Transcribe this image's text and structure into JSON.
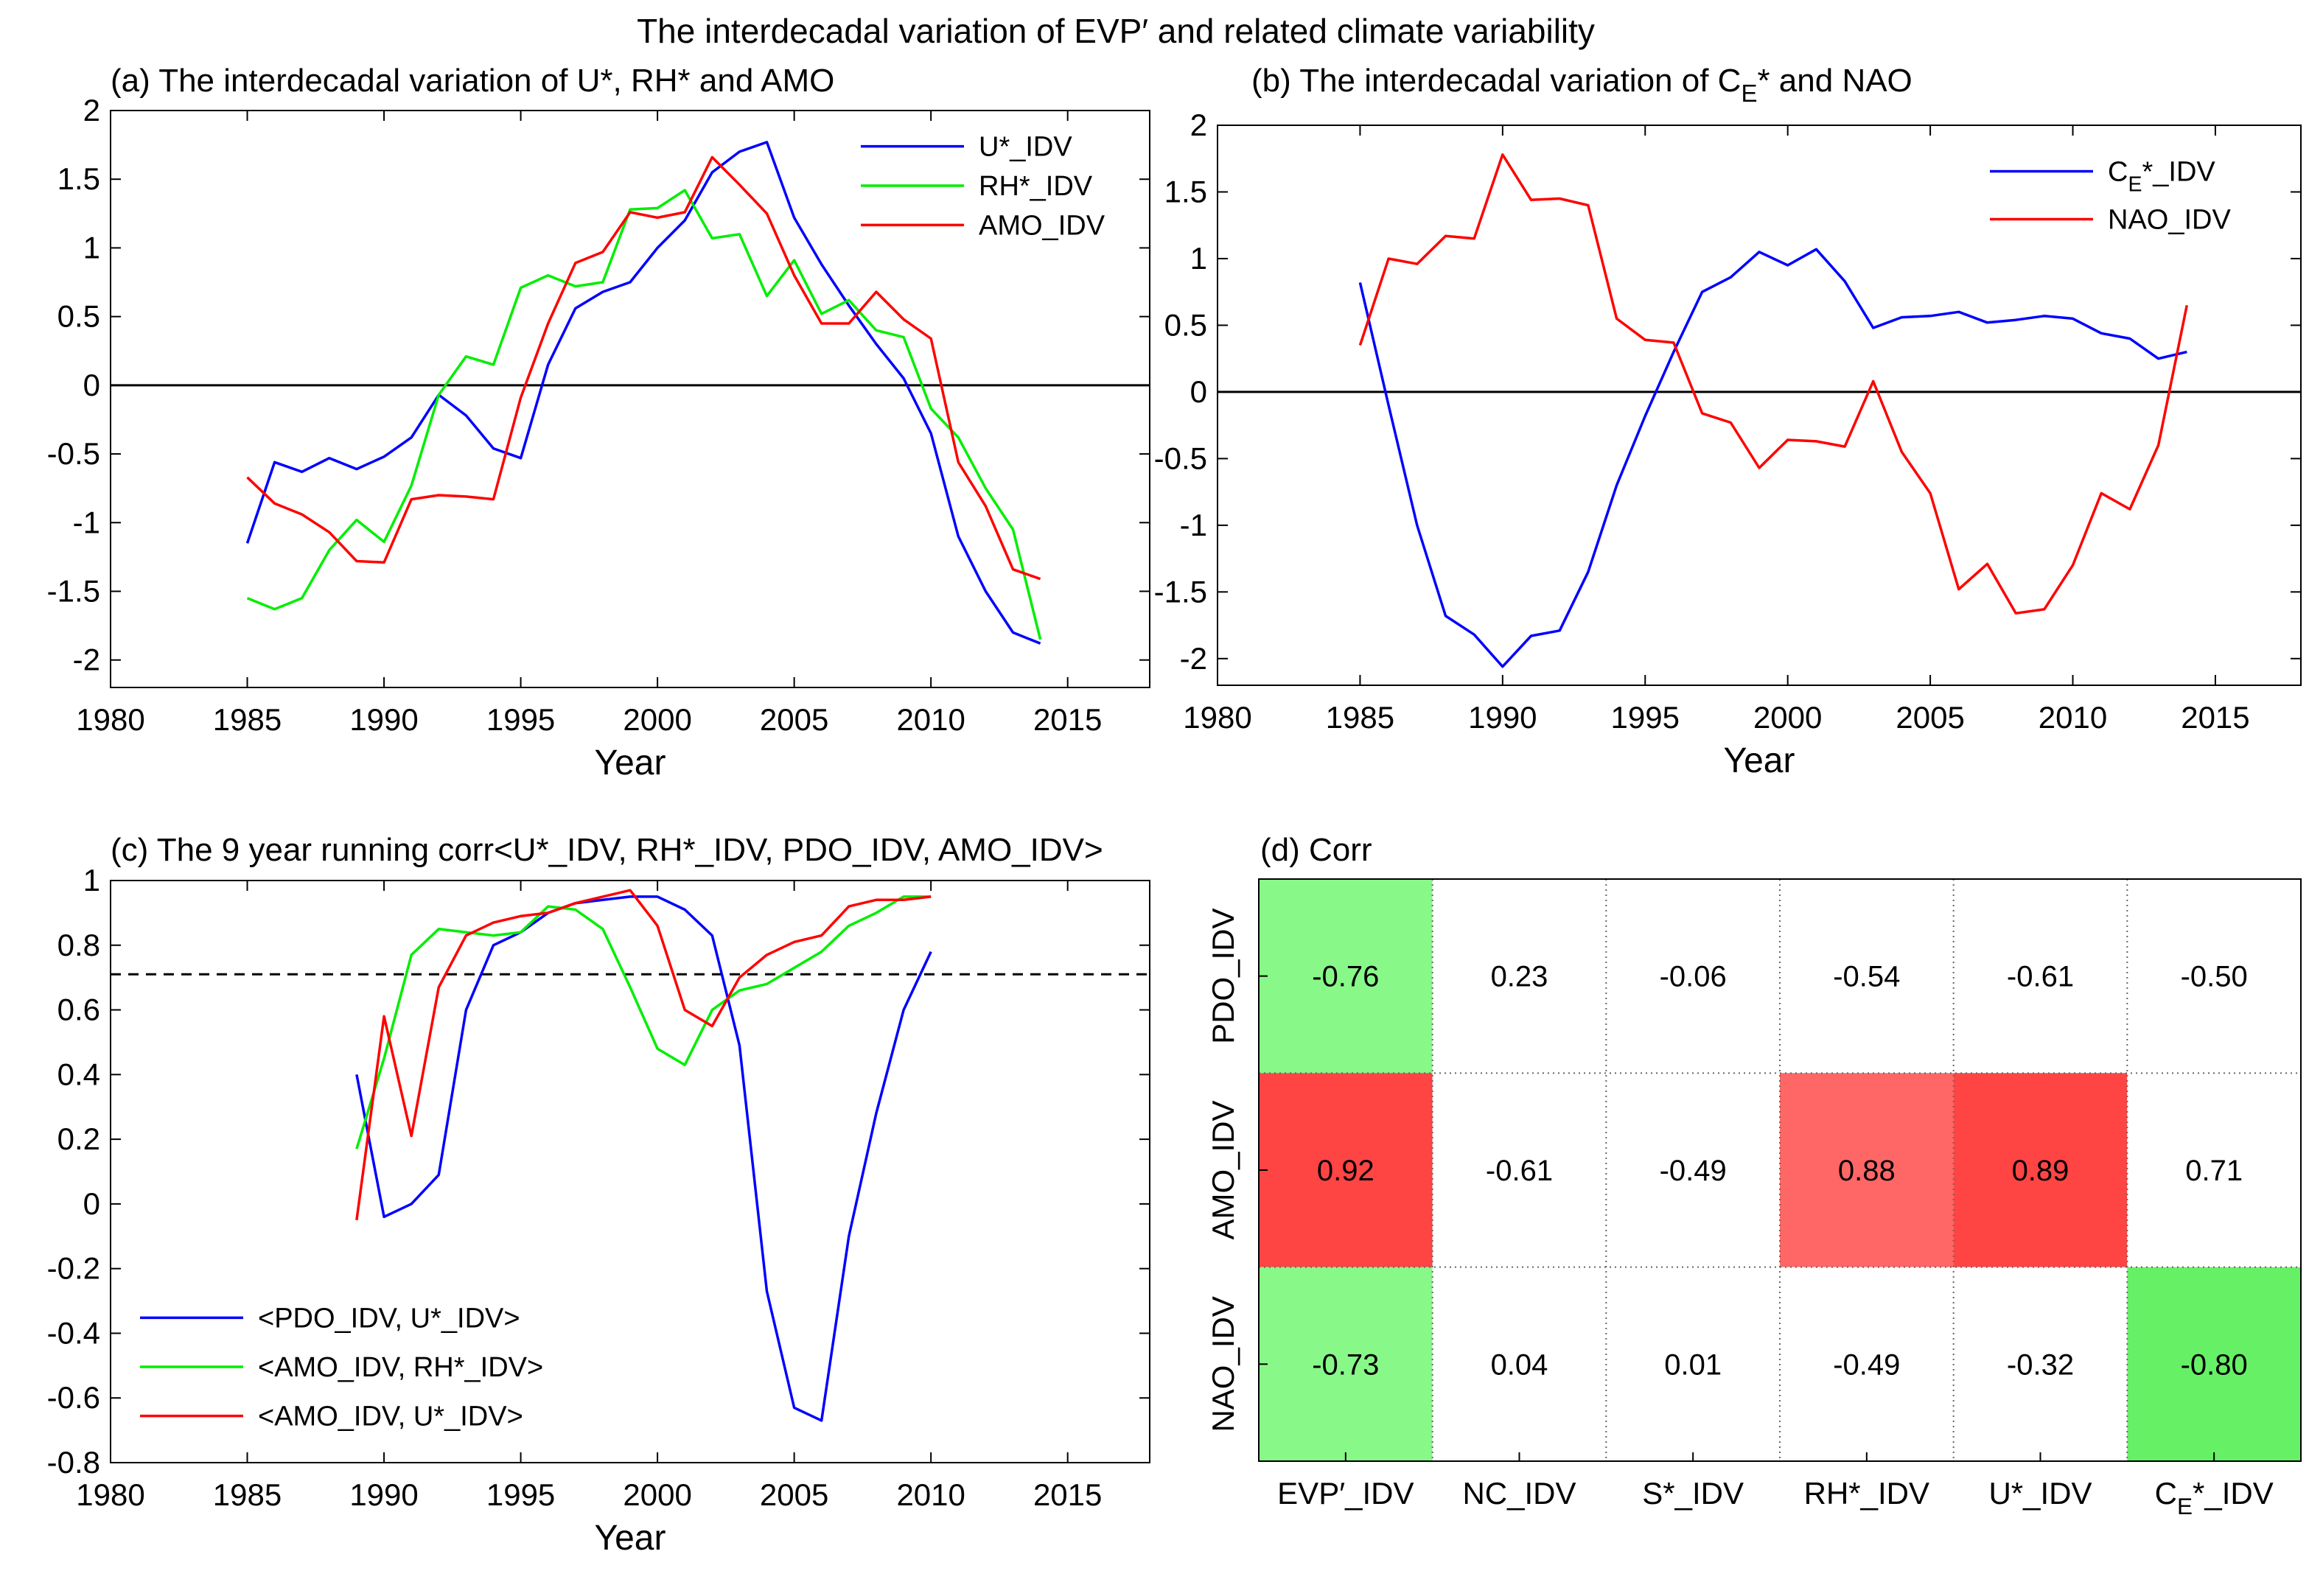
{
  "figure": {
    "suptitle": "The interdecadal variation of EVP′ and related climate variability"
  },
  "colors": {
    "blue": "#0000ff",
    "green": "#00ee00",
    "red": "#ff0000",
    "heat_green_light": "#88f888",
    "heat_green": "#66f066",
    "heat_red_light": "#ff6666",
    "heat_red": "#ff4444"
  },
  "chart_data": [
    {
      "id": "a",
      "type": "line",
      "title_parts": [
        "(a) The interdecadal variation of U*, RH* and AMO"
      ],
      "xlabel": "Year",
      "ylabel": "",
      "xlim": [
        1980,
        2018
      ],
      "ylim": [
        -2.2,
        2.0
      ],
      "xticks": [
        "1980",
        "1985",
        "1990",
        "1995",
        "2000",
        "2005",
        "2010",
        "2015"
      ],
      "yticks": [
        "2",
        "1.5",
        "1",
        "0.5",
        "0",
        "-0.5",
        "-1",
        "-1.5",
        "-2"
      ],
      "reference_lines": [
        {
          "y": 0,
          "style": "solid"
        }
      ],
      "legend_position": "top-right",
      "x": [
        1985,
        1986,
        1987,
        1988,
        1989,
        1990,
        1991,
        1992,
        1993,
        1994,
        1995,
        1996,
        1997,
        1998,
        1999,
        2000,
        2001,
        2002,
        2003,
        2004,
        2005,
        2006,
        2007,
        2008,
        2009,
        2010,
        2011,
        2012,
        2013,
        2014
      ],
      "series": [
        {
          "name": "U*_IDV",
          "color": "blue",
          "values": [
            -1.15,
            -0.56,
            -0.63,
            -0.53,
            -0.61,
            -0.52,
            -0.38,
            -0.07,
            -0.22,
            -0.46,
            -0.53,
            0.15,
            0.56,
            0.68,
            0.75,
            1.0,
            1.2,
            1.55,
            1.7,
            1.77,
            1.22,
            0.88,
            0.58,
            0.3,
            0.05,
            -0.35,
            -1.1,
            -1.5,
            -1.8,
            -1.88
          ]
        },
        {
          "name": "RH*_IDV",
          "color": "green",
          "values": [
            -1.55,
            -1.63,
            -1.55,
            -1.2,
            -0.98,
            -1.14,
            -0.73,
            -0.07,
            0.21,
            0.15,
            0.71,
            0.8,
            0.72,
            0.75,
            1.28,
            1.29,
            1.42,
            1.07,
            1.1,
            0.65,
            0.91,
            0.52,
            0.62,
            0.4,
            0.35,
            -0.17,
            -0.38,
            -0.75,
            -1.05,
            -1.85
          ]
        },
        {
          "name": "AMO_IDV",
          "color": "red",
          "values": [
            -0.67,
            -0.86,
            -0.94,
            -1.07,
            -1.28,
            -1.29,
            -0.83,
            -0.8,
            -0.81,
            -0.83,
            -0.09,
            0.45,
            0.89,
            0.97,
            1.26,
            1.22,
            1.26,
            1.66,
            1.46,
            1.25,
            0.8,
            0.45,
            0.45,
            0.68,
            0.48,
            0.34,
            -0.56,
            -0.88,
            -1.34,
            -1.41
          ]
        }
      ]
    },
    {
      "id": "b",
      "type": "line",
      "title_parts": [
        "(b) The interdecadal variation of C",
        "E",
        "* and NAO"
      ],
      "xlabel": "Year",
      "ylabel": "",
      "xlim": [
        1980,
        2018
      ],
      "ylim": [
        -2.2,
        2.0
      ],
      "xticks": [
        "1980",
        "1985",
        "1990",
        "1995",
        "2000",
        "2005",
        "2010",
        "2015"
      ],
      "yticks": [
        "2",
        "1.5",
        "1",
        "0.5",
        "0",
        "-0.5",
        "-1",
        "-1.5",
        "-2"
      ],
      "reference_lines": [
        {
          "y": 0,
          "style": "solid"
        }
      ],
      "legend_position": "top-right",
      "x": [
        1985,
        1986,
        1987,
        1988,
        1989,
        1990,
        1991,
        1992,
        1993,
        1994,
        1995,
        1996,
        1997,
        1998,
        1999,
        2000,
        2001,
        2002,
        2003,
        2004,
        2005,
        2006,
        2007,
        2008,
        2009,
        2010,
        2011,
        2012,
        2013,
        2014
      ],
      "series": [
        {
          "name": "C_E*_IDV",
          "label_parts": [
            "C",
            "E",
            "*_IDV"
          ],
          "color": "blue",
          "values": [
            0.82,
            -0.1,
            -1.0,
            -1.68,
            -1.82,
            -2.06,
            -1.83,
            -1.79,
            -1.35,
            -0.7,
            -0.18,
            0.3,
            0.75,
            0.86,
            1.05,
            0.95,
            1.07,
            0.83,
            0.48,
            0.56,
            0.57,
            0.6,
            0.52,
            0.54,
            0.57,
            0.55,
            0.44,
            0.4,
            0.25,
            0.3
          ]
        },
        {
          "name": "NAO_IDV",
          "label_parts": [
            "NAO_IDV"
          ],
          "color": "red",
          "values": [
            0.35,
            1.0,
            0.96,
            1.17,
            1.15,
            1.78,
            1.44,
            1.45,
            1.4,
            0.55,
            0.39,
            0.37,
            -0.16,
            -0.23,
            -0.57,
            -0.36,
            -0.37,
            -0.41,
            0.08,
            -0.45,
            -0.76,
            -1.48,
            -1.29,
            -1.66,
            -1.63,
            -1.3,
            -0.76,
            -0.88,
            -0.4,
            0.65
          ]
        }
      ]
    },
    {
      "id": "c",
      "type": "line",
      "title_parts": [
        "(c) The 9 year running corr<U*_IDV, RH*_IDV, PDO_IDV, AMO_IDV>"
      ],
      "xlabel": "Year",
      "ylabel": "",
      "xlim": [
        1980,
        2018
      ],
      "ylim": [
        -0.8,
        1.0
      ],
      "xticks": [
        "1980",
        "1985",
        "1990",
        "1995",
        "2000",
        "2005",
        "2010",
        "2015"
      ],
      "yticks": [
        "1",
        "0.8",
        "0.6",
        "0.4",
        "0.2",
        "0",
        "-0.2",
        "-0.4",
        "-0.6",
        "-0.8"
      ],
      "reference_lines": [
        {
          "y": 0.71,
          "style": "dashed"
        }
      ],
      "legend_position": "bottom-left",
      "x": [
        1989,
        1990,
        1991,
        1992,
        1993,
        1994,
        1995,
        1996,
        1997,
        1998,
        1999,
        2000,
        2001,
        2002,
        2003,
        2004,
        2005,
        2006,
        2007,
        2008,
        2009,
        2010
      ],
      "series": [
        {
          "name": "<PDO_IDV, U*_IDV>",
          "color": "blue",
          "values": [
            0.4,
            -0.04,
            0.0,
            0.09,
            0.6,
            0.8,
            0.84,
            0.9,
            0.93,
            0.94,
            0.95,
            0.95,
            0.91,
            0.83,
            0.49,
            -0.27,
            -0.63,
            -0.67,
            -0.1,
            0.28,
            0.6,
            0.78
          ]
        },
        {
          "name": "<AMO_IDV, RH*_IDV>",
          "color": "green",
          "values": [
            0.17,
            0.45,
            0.77,
            0.85,
            0.84,
            0.83,
            0.84,
            0.92,
            0.91,
            0.85,
            0.67,
            0.48,
            0.43,
            0.6,
            0.66,
            0.68,
            0.73,
            0.78,
            0.86,
            0.9,
            0.95,
            0.95
          ]
        },
        {
          "name": "<AMO_IDV, U*_IDV>",
          "color": "red",
          "values": [
            -0.05,
            0.58,
            0.21,
            0.67,
            0.83,
            0.87,
            0.89,
            0.9,
            0.93,
            0.95,
            0.97,
            0.86,
            0.6,
            0.55,
            0.7,
            0.77,
            0.81,
            0.83,
            0.92,
            0.94,
            0.94,
            0.95
          ]
        }
      ]
    },
    {
      "id": "d",
      "type": "heatmap",
      "title_parts": [
        "(d) Corr"
      ],
      "rows": [
        "PDO_IDV",
        "AMO_IDV",
        "NAO_IDV"
      ],
      "columns": [
        "EVP′_IDV",
        "NC_IDV",
        "S*_IDV",
        "RH*_IDV",
        "U*_IDV",
        "C_E*_IDV"
      ],
      "column_label_parts": [
        [
          "EVP′_IDV"
        ],
        [
          "NC_IDV"
        ],
        [
          "S*_IDV"
        ],
        [
          "RH*_IDV"
        ],
        [
          "U*_IDV"
        ],
        [
          "C",
          "E",
          "*_IDV"
        ]
      ],
      "values": [
        [
          "-0.76",
          "0.23",
          "-0.06",
          "-0.54",
          "-0.61",
          "-0.50"
        ],
        [
          "0.92",
          "-0.61",
          "-0.49",
          "0.88",
          "0.89",
          "0.71"
        ],
        [
          "-0.73",
          "0.04",
          "0.01",
          "-0.49",
          "-0.32",
          "-0.80"
        ]
      ],
      "cell_colors": [
        [
          "heat_green_light",
          "",
          "",
          "",
          "",
          ""
        ],
        [
          "heat_red",
          "",
          "",
          "heat_red_light",
          "heat_red",
          ""
        ],
        [
          "heat_green_light",
          "",
          "",
          "",
          "",
          "heat_green"
        ]
      ]
    }
  ]
}
